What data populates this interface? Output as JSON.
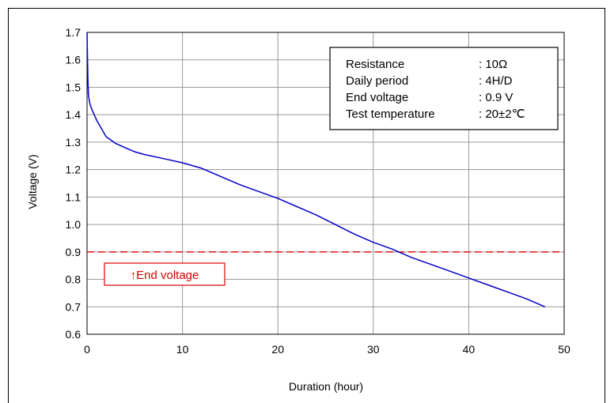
{
  "chart_data": {
    "type": "line",
    "title": "",
    "xlabel": "Duration (hour)",
    "ylabel": "Voltage (V)",
    "xlim": [
      0,
      50
    ],
    "ylim": [
      0.6,
      1.7
    ],
    "x_ticks": [
      "0",
      "10",
      "20",
      "30",
      "40",
      "50"
    ],
    "y_ticks": [
      "0.6",
      "0.7",
      "0.8",
      "0.9",
      "1.0",
      "1.1",
      "1.2",
      "1.3",
      "1.4",
      "1.5",
      "1.6",
      "1.7"
    ],
    "x_tick_values": [
      0,
      10,
      20,
      30,
      40,
      50
    ],
    "y_tick_values": [
      0.6,
      0.7,
      0.8,
      0.9,
      1.0,
      1.1,
      1.2,
      1.3,
      1.4,
      1.5,
      1.6,
      1.7
    ],
    "grid": true,
    "series": [
      {
        "color": "#0000cc",
        "x": [
          0,
          0.05,
          0.1,
          0.15,
          0.3,
          0.5,
          1,
          1.5,
          2,
          3,
          4,
          5,
          6,
          8,
          10,
          12,
          14,
          16,
          18,
          20,
          22,
          24,
          26,
          28,
          30,
          32,
          34,
          36,
          38,
          40,
          42,
          44,
          46,
          48
        ],
        "y": [
          1.7,
          1.6,
          1.52,
          1.47,
          1.44,
          1.42,
          1.38,
          1.35,
          1.32,
          1.295,
          1.28,
          1.265,
          1.255,
          1.24,
          1.225,
          1.205,
          1.175,
          1.145,
          1.12,
          1.095,
          1.065,
          1.035,
          1.0,
          0.965,
          0.935,
          0.91,
          0.88,
          0.855,
          0.83,
          0.805,
          0.78,
          0.755,
          0.73,
          0.7
        ]
      }
    ],
    "reference_line": {
      "y": 0.9,
      "color": "#dd0000",
      "style": "dashed"
    },
    "annotation": {
      "text": "↑End voltage",
      "color": "#dd0000"
    },
    "info_box": [
      {
        "label": "Resistance",
        "value": ": 10Ω"
      },
      {
        "label": "Daily period",
        "value": ": 4H/D"
      },
      {
        "label": "End voltage",
        "value": ": 0.9 V"
      },
      {
        "label": "Test temperature",
        "value": ": 20±2℃"
      }
    ]
  }
}
